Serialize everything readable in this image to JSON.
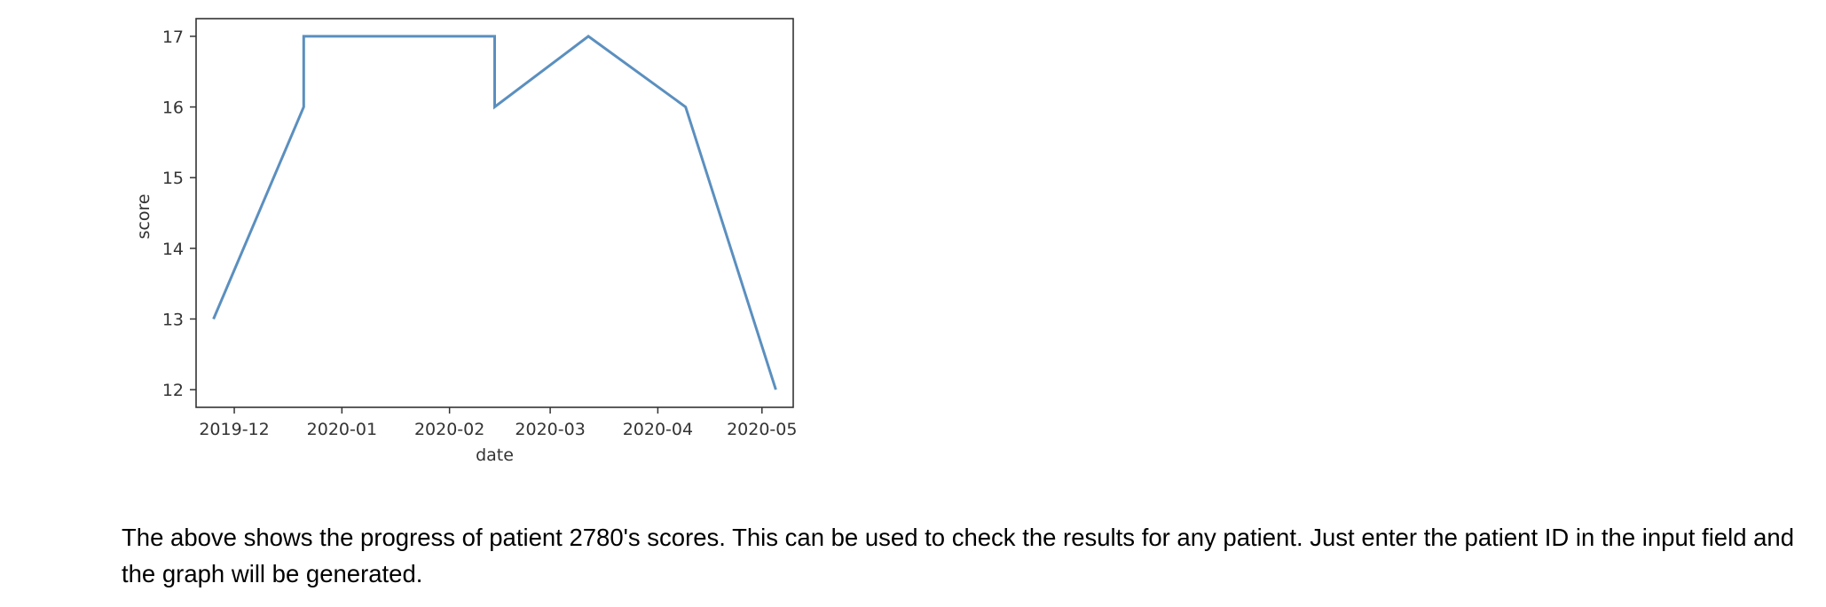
{
  "chart_data": {
    "type": "line",
    "title": "",
    "xlabel": "date",
    "ylabel": "score",
    "x_tick_labels": [
      "2019-12",
      "2020-01",
      "2020-02",
      "2020-03",
      "2020-04",
      "2020-05"
    ],
    "y_tick_labels": [
      "12",
      "13",
      "14",
      "15",
      "16",
      "17"
    ],
    "ylim": [
      11.75,
      17.25
    ],
    "xlim": [
      "2019-11-20",
      "2020-05-10"
    ],
    "grid": false,
    "series": [
      {
        "color": "#5b8fbf",
        "points": [
          {
            "x": "2019-11-25",
            "y": 13
          },
          {
            "x": "2019-12-21",
            "y": 16
          },
          {
            "x": "2019-12-21",
            "y": 17
          },
          {
            "x": "2020-02-14",
            "y": 17
          },
          {
            "x": "2020-02-14",
            "y": 16
          },
          {
            "x": "2020-03-12",
            "y": 17
          },
          {
            "x": "2020-04-09",
            "y": 16
          },
          {
            "x": "2020-05-05",
            "y": 12
          }
        ]
      }
    ]
  },
  "caption": {
    "text": "The above shows the progress of patient 2780's scores. This can be used to check the results for any patient. Just enter the patient ID in the input field and the graph will be generated."
  }
}
